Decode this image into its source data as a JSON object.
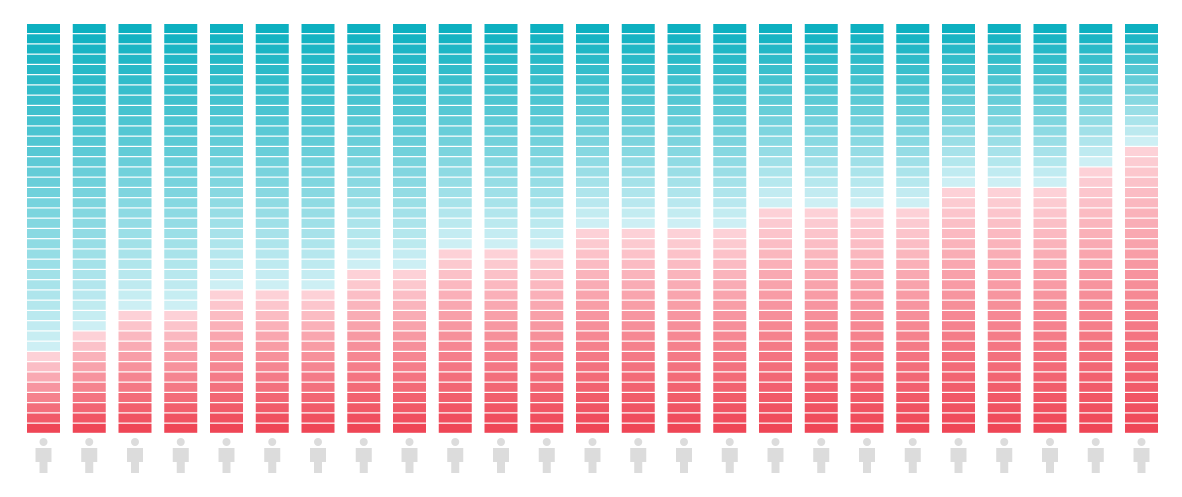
{
  "chart_data": {
    "type": "bar",
    "subtype": "stacked-100-percent-segmented",
    "segments_per_column": 40,
    "categories": [
      "",
      "",
      "",
      "",
      "",
      "",
      "",
      "",
      "",
      "",
      "",
      "",
      "",
      "",
      "",
      "",
      "",
      "",
      "",
      "",
      "",
      "",
      "",
      "",
      ""
    ],
    "series": [
      {
        "values": [
          8,
          10,
          12,
          12,
          14,
          14,
          14,
          16,
          16,
          18,
          18,
          18,
          20,
          20,
          20,
          20,
          22,
          22,
          22,
          22,
          24,
          24,
          24,
          26,
          28
        ]
      },
      {
        "values": [
          32,
          30,
          28,
          28,
          26,
          26,
          26,
          24,
          24,
          22,
          22,
          22,
          20,
          20,
          20,
          20,
          18,
          18,
          18,
          18,
          16,
          16,
          16,
          14,
          12
        ]
      }
    ],
    "ylim": [
      0,
      40
    ],
    "grid": false,
    "legend": "none"
  },
  "colors": {
    "top_series_dark": "#0db0c0",
    "top_series_light": "#cdeff4",
    "bottom_series_dark": "#ef4656",
    "bottom_series_light": "#fdd1d7",
    "person_icon": "#dcdcdc",
    "segment_separator": "#ffffff"
  },
  "icons": {
    "column_marker": "person-icon"
  }
}
